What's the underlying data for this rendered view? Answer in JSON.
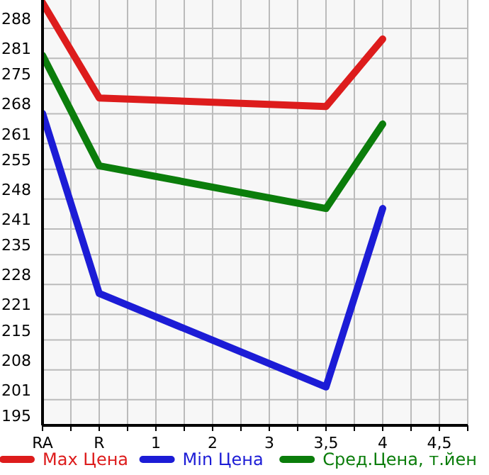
{
  "chart_data": {
    "type": "line",
    "categories": [
      "RA",
      "R",
      "1",
      "2",
      "3",
      "3,5",
      "4",
      "4,5"
    ],
    "series": [
      {
        "name": "Max Цена",
        "color": "#dd1c1c",
        "values": [
          294,
          271.7,
          null,
          null,
          null,
          269.7,
          285.5,
          null
        ]
      },
      {
        "name": "Min Цена",
        "color": "#1c1cd6",
        "values": [
          268.1,
          225.9,
          null,
          null,
          null,
          204,
          245.8,
          null
        ]
      },
      {
        "name": "Сред.Цена, т.йен",
        "color": "#0b7d0b",
        "values": [
          281.7,
          255.8,
          null,
          null,
          null,
          245.8,
          265.6,
          null
        ]
      }
    ],
    "ylim": [
      195,
      294.64
    ],
    "yticks": [
      195,
      201,
      208,
      215,
      221,
      228,
      235,
      241,
      248,
      255,
      261,
      268,
      275,
      281,
      288
    ],
    "grid": true,
    "legend": "bottom",
    "marker": "none",
    "line_style": "solid"
  }
}
